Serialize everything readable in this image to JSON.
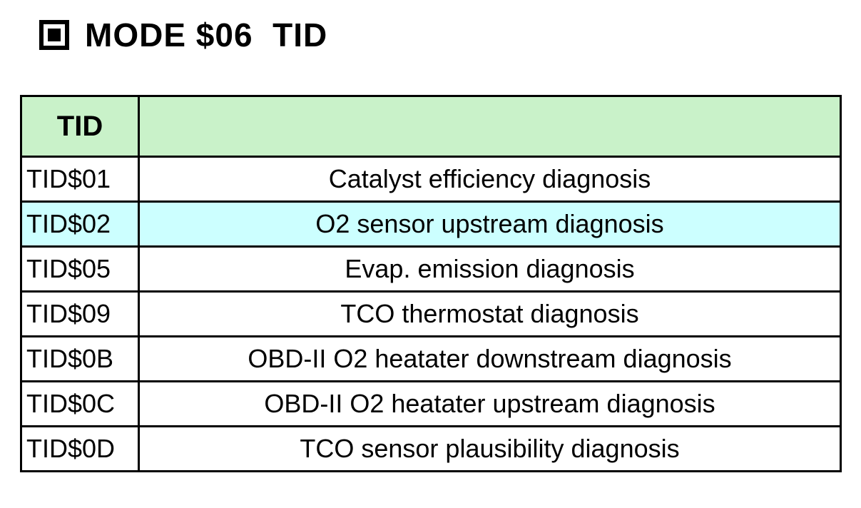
{
  "title": {
    "icon": "filled-square-in-square-bullet",
    "text": "MODE $06  TID"
  },
  "table": {
    "header": {
      "tid": "TID",
      "description": ""
    },
    "rows": [
      {
        "tid": "TID$01",
        "description": "Catalyst efficiency diagnosis",
        "highlighted": false
      },
      {
        "tid": "TID$02",
        "description": "O2 sensor upstream diagnosis",
        "highlighted": true
      },
      {
        "tid": "TID$05",
        "description": "Evap. emission diagnosis",
        "highlighted": false
      },
      {
        "tid": "TID$09",
        "description": "TCO thermostat diagnosis",
        "highlighted": false
      },
      {
        "tid": "TID$0B",
        "description": "OBD-II O2 heatater downstream diagnosis",
        "highlighted": false
      },
      {
        "tid": "TID$0C",
        "description": "OBD-II O2 heatater upstream diagnosis",
        "highlighted": false
      },
      {
        "tid": "TID$0D",
        "description": "TCO sensor plausibility diagnosis",
        "highlighted": false
      }
    ]
  },
  "colors": {
    "header_bg": "#c9f2c9",
    "highlight_bg": "#ccffff",
    "border": "#000000",
    "text": "#000000"
  }
}
